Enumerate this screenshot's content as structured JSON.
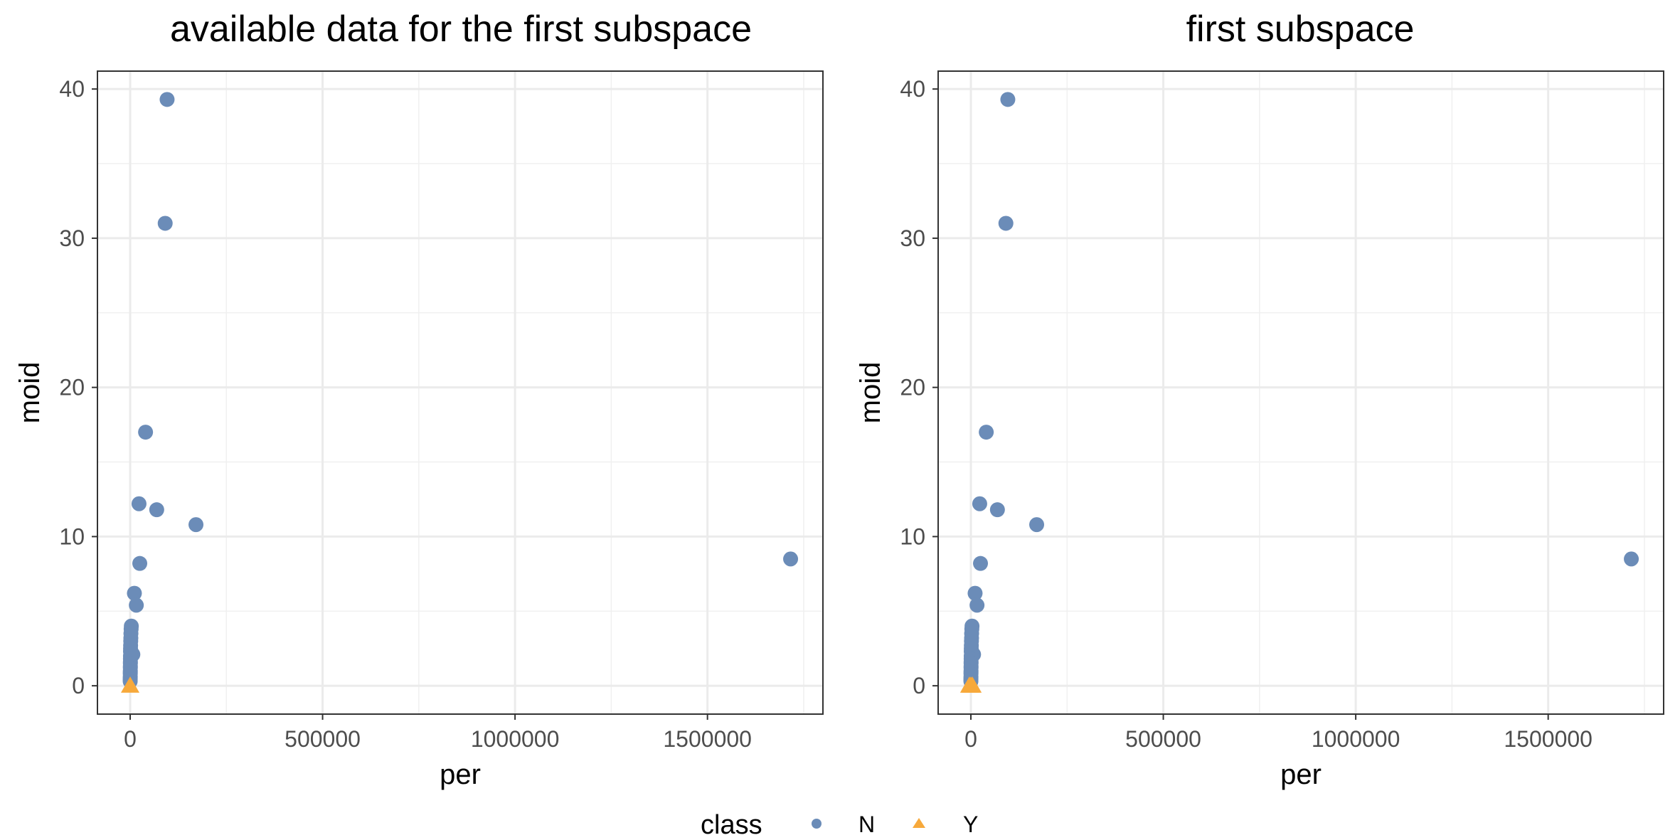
{
  "legend": {
    "title": "class",
    "entries": [
      {
        "label": "N",
        "shape": "circle",
        "color": "#6B8CB8"
      },
      {
        "label": "Y",
        "shape": "triangle",
        "color": "#F7A93B"
      }
    ]
  },
  "chart_data": [
    {
      "type": "scatter",
      "title": "available data for the first subspace",
      "xlabel": "per",
      "ylabel": "moid",
      "xlim": [
        -85000,
        1800000
      ],
      "ylim": [
        -1.9,
        41.2
      ],
      "x_ticks": [
        0,
        500000,
        1000000,
        1500000
      ],
      "x_tick_labels": [
        "0",
        "500000",
        "1000000",
        "1500000"
      ],
      "y_ticks": [
        0,
        10,
        20,
        30,
        40
      ],
      "y_tick_labels": [
        "0",
        "10",
        "20",
        "30",
        "40"
      ],
      "grid": true,
      "series": [
        {
          "name": "N",
          "color": "#6B8CB8",
          "marker": "circle",
          "points": [
            [
              96000,
              39.3
            ],
            [
              91000,
              31.0
            ],
            [
              40000,
              17.0
            ],
            [
              23000,
              12.2
            ],
            [
              69000,
              11.8
            ],
            [
              171000,
              10.8
            ],
            [
              1716000,
              8.5
            ],
            [
              25000,
              8.2
            ],
            [
              11000,
              6.2
            ],
            [
              16000,
              5.4
            ],
            [
              3000,
              4.0
            ],
            [
              2500,
              3.8
            ],
            [
              2000,
              3.5
            ],
            [
              1800,
              3.2
            ],
            [
              1500,
              3.0
            ],
            [
              1200,
              2.7
            ],
            [
              1000,
              2.5
            ],
            [
              900,
              2.3
            ],
            [
              7000,
              2.1
            ],
            [
              800,
              2.0
            ],
            [
              700,
              1.8
            ],
            [
              600,
              1.6
            ],
            [
              550,
              1.5
            ],
            [
              500,
              1.3
            ],
            [
              450,
              1.2
            ],
            [
              400,
              1.0
            ],
            [
              350,
              0.9
            ],
            [
              300,
              0.8
            ],
            [
              250,
              0.6
            ],
            [
              200,
              0.5
            ],
            [
              150,
              0.4
            ],
            [
              100,
              0.3
            ]
          ]
        },
        {
          "name": "Y",
          "color": "#F7A93B",
          "marker": "triangle",
          "points": [
            [
              0,
              0.0
            ]
          ]
        }
      ]
    },
    {
      "type": "scatter",
      "title": "first subspace",
      "xlabel": "per",
      "ylabel": "moid",
      "xlim": [
        -85000,
        1800000
      ],
      "ylim": [
        -1.9,
        41.2
      ],
      "x_ticks": [
        0,
        500000,
        1000000,
        1500000
      ],
      "x_tick_labels": [
        "0",
        "500000",
        "1000000",
        "1500000"
      ],
      "y_ticks": [
        0,
        10,
        20,
        30,
        40
      ],
      "y_tick_labels": [
        "0",
        "10",
        "20",
        "30",
        "40"
      ],
      "grid": true,
      "series": [
        {
          "name": "N",
          "color": "#6B8CB8",
          "marker": "circle",
          "points": [
            [
              96000,
              39.3
            ],
            [
              91000,
              31.0
            ],
            [
              40000,
              17.0
            ],
            [
              23000,
              12.2
            ],
            [
              69000,
              11.8
            ],
            [
              171000,
              10.8
            ],
            [
              1716000,
              8.5
            ],
            [
              25000,
              8.2
            ],
            [
              11000,
              6.2
            ],
            [
              16000,
              5.4
            ],
            [
              3000,
              4.0
            ],
            [
              2500,
              3.8
            ],
            [
              2000,
              3.5
            ],
            [
              1800,
              3.2
            ],
            [
              1500,
              3.0
            ],
            [
              1200,
              2.7
            ],
            [
              1000,
              2.5
            ],
            [
              900,
              2.3
            ],
            [
              7000,
              2.1
            ],
            [
              800,
              2.0
            ],
            [
              700,
              1.8
            ],
            [
              600,
              1.6
            ],
            [
              550,
              1.5
            ],
            [
              500,
              1.3
            ],
            [
              450,
              1.2
            ],
            [
              400,
              1.0
            ],
            [
              350,
              0.9
            ],
            [
              300,
              0.8
            ],
            [
              250,
              0.6
            ],
            [
              200,
              0.5
            ],
            [
              150,
              0.4
            ],
            [
              100,
              0.3
            ]
          ]
        },
        {
          "name": "Y",
          "color": "#F7A93B",
          "marker": "triangle",
          "points": [
            [
              -4000,
              0.0
            ],
            [
              0,
              0.0
            ],
            [
              4000,
              0.0
            ]
          ]
        }
      ]
    }
  ]
}
